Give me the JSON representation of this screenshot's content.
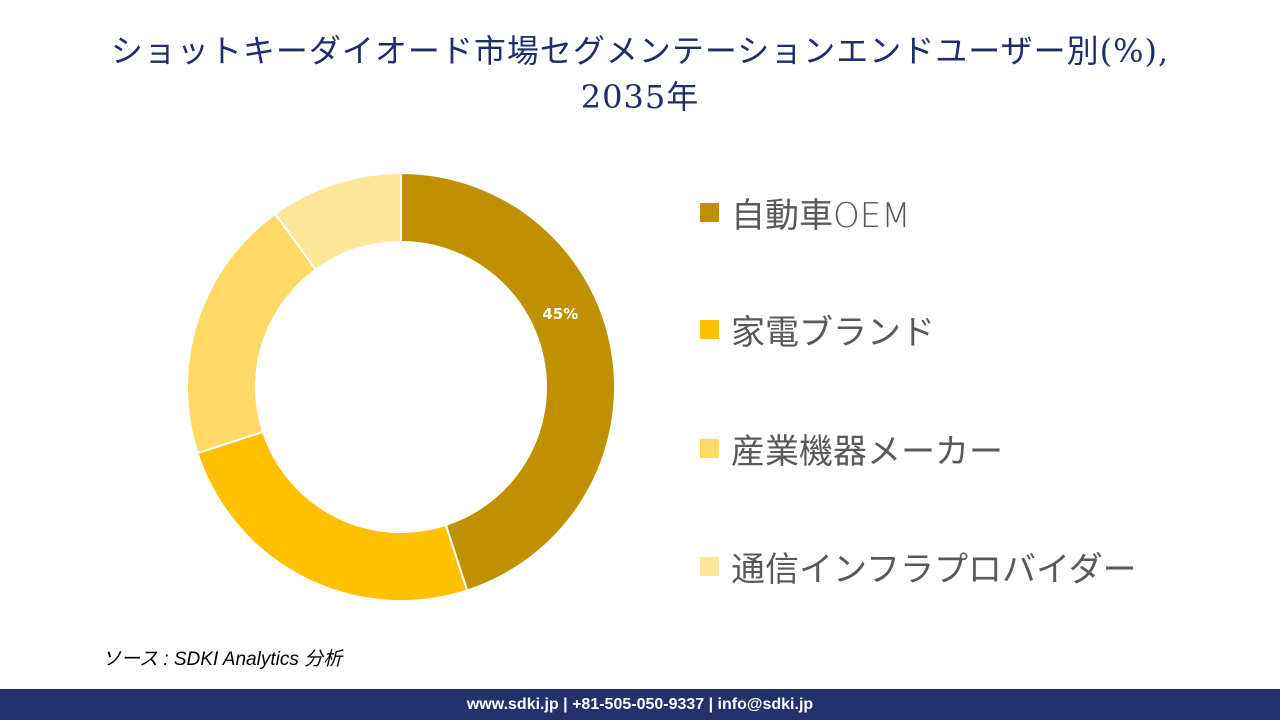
{
  "title": {
    "line1": "ショットキーダイオード市場セグメンテーションエンドユーザー別(%),",
    "line2": "2035年"
  },
  "chart_data": {
    "type": "pie",
    "subtype": "donut",
    "title": "ショットキーダイオード市場セグメンテーションエンドユーザー別(%), 2035年",
    "categories": [
      "自動車OEM",
      "家電ブランド",
      "産業機器メーカー",
      "通信インフラプロバイダー"
    ],
    "values": [
      45,
      25,
      20,
      10
    ],
    "colors": [
      "#bf9000",
      "#ffc000",
      "#ffd966",
      "#ffe699"
    ],
    "data_labels": [
      "45%",
      "",
      "",
      ""
    ],
    "legend_position": "right",
    "start_angle_deg": 0,
    "direction": "clockwise"
  },
  "legend": {
    "items": [
      {
        "label": "自動車OEM",
        "color": "#bf9000"
      },
      {
        "label": "家電ブランド",
        "color": "#ffc000"
      },
      {
        "label": "産業機器メーカー",
        "color": "#ffd966"
      },
      {
        "label": "通信インフラプロバイダー",
        "color": "#ffe699"
      }
    ]
  },
  "source": "ソース : SDKI Analytics  分析",
  "footer": "www.sdki.jp | +81-505-050-9337 | info@sdki.jp"
}
